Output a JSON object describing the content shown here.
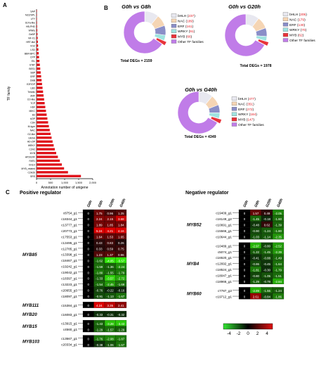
{
  "panels": {
    "a": "A",
    "b": "B",
    "c": "C"
  },
  "panelA": {
    "ylabel": "TF family",
    "xlabel": "Annotation number of unigene",
    "xticks": [
      "0",
      "500",
      "1,000",
      "1,500",
      "2,000"
    ],
    "categories": [
      "SAP",
      "NZZ/SPL",
      "LFY",
      "S1Fa-like",
      "HB-PHD",
      "Whirly",
      "GeBP",
      "NF-X1",
      "HRT-like",
      "VOZ",
      "LSD",
      "BBR-BPC",
      "CPP",
      "EIL",
      "STAT",
      "BES1",
      "SBP",
      "GRF",
      "DBB",
      "E2F/DP",
      "LBD",
      "Trihelix",
      "ARF",
      "CO-like",
      "TCP",
      "HSF",
      "MIKC",
      "B3",
      "bZIP",
      "C3H",
      "M-type",
      "NAC",
      "G2-like",
      "GRAS",
      "HD-ZIP",
      "WRKY",
      "C2H2",
      "MYB",
      "AP2/ERF",
      "FAR1",
      "bHLH",
      "MYB_related",
      "C2H2b",
      "SRS"
    ],
    "values": [
      6,
      10,
      14,
      18,
      22,
      28,
      34,
      40,
      48,
      56,
      66,
      78,
      90,
      104,
      118,
      132,
      148,
      164,
      180,
      196,
      214,
      232,
      250,
      270,
      290,
      312,
      336,
      360,
      386,
      412,
      440,
      470,
      502,
      536,
      572,
      610,
      650,
      700,
      760,
      830,
      900,
      980,
      1120,
      1580
    ],
    "xmax": 2000
  },
  "donuts": [
    {
      "title": "G0h vs G8h",
      "total": "Total DEGs = 2159",
      "segments": [
        {
          "name": "bHLH",
          "count": "237",
          "value": 237,
          "color": "#e8e8f0"
        },
        {
          "name": "NAC",
          "count": "189",
          "value": 189,
          "color": "#f5d5b4"
        },
        {
          "name": "ERF",
          "count": "161",
          "value": 161,
          "color": "#8a8ec8"
        },
        {
          "name": "WRKY",
          "count": "91",
          "value": 91,
          "color": "#9fe3e0"
        },
        {
          "name": "MYB",
          "count": "66",
          "value": 66,
          "color": "#e8333a"
        },
        {
          "name": "Other TF families",
          "count": "",
          "value": 1415,
          "color": "#c07ce8"
        }
      ]
    },
    {
      "title": "G0h vs G20h",
      "total": "Total DEGs = 1978",
      "segments": [
        {
          "name": "bHLH",
          "count": "205",
          "value": 205,
          "color": "#e8e8f0"
        },
        {
          "name": "NAC",
          "count": "179",
          "value": 179,
          "color": "#f5d5b4"
        },
        {
          "name": "ERF",
          "count": "130",
          "value": 130,
          "color": "#8a8ec8"
        },
        {
          "name": "WRKY",
          "count": "70",
          "value": 70,
          "color": "#9fe3e0"
        },
        {
          "name": "MYB",
          "count": "62",
          "value": 62,
          "color": "#e8333a"
        },
        {
          "name": "Other TF families",
          "count": "",
          "value": 1332,
          "color": "#c07ce8"
        }
      ]
    },
    {
      "title": "G0h vs G40h",
      "total": "Total DEGs = 4349",
      "segments": [
        {
          "name": "bHLH",
          "count": "477",
          "value": 477,
          "color": "#e8e8f0"
        },
        {
          "name": "NAC",
          "count": "351",
          "value": 351,
          "color": "#f5d5b4"
        },
        {
          "name": "ERF",
          "count": "272",
          "value": 272,
          "color": "#8a8ec8"
        },
        {
          "name": "WRKY",
          "count": "184",
          "value": 184,
          "color": "#9fe3e0"
        },
        {
          "name": "MYB",
          "count": "147",
          "value": 147,
          "color": "#e8333a"
        },
        {
          "name": "Other TF families",
          "count": "",
          "value": 2918,
          "color": "#c07ce8"
        }
      ]
    }
  ],
  "heatmap": {
    "positive_title": "Positive regulator",
    "negative_title": "Negative regulator",
    "columns": [
      "G0h",
      "G8h",
      "G20h",
      "G40h"
    ],
    "positive_groups": [
      {
        "label": "MYB85",
        "rows": [
          {
            "id": "c8754_g1",
            "v": [
              "0",
              "1.75",
              "0.96",
              "1.25"
            ]
          },
          {
            "id": "c18344_g1",
            "v": [
              "0",
              "2.24",
              "2.15",
              "3.68"
            ]
          },
          {
            "id": "c13777_g1",
            "v": [
              "0",
              "1.89",
              "1.85",
              "1.84"
            ]
          },
          {
            "id": "c20773_g1",
            "v": [
              "0",
              "5.24",
              "4.21",
              "4.16"
            ]
          },
          {
            "id": "c17553_g1",
            "v": [
              "0",
              "1.64",
              "1.53",
              "1.65"
            ]
          },
          {
            "id": "c13495_g1",
            "v": [
              "0",
              "0.43",
              "0.83",
              "0.26"
            ]
          },
          {
            "id": "c12785_g1",
            "v": [
              "0",
              "0.33",
              "0.59",
              "0.75"
            ]
          },
          {
            "id": "c13398_g1",
            "v": [
              "0",
              "1.23",
              "1.37",
              "0.96"
            ]
          },
          {
            "id": "c18467_g1",
            "v": [
              "0",
              "-1.62",
              "-4.05",
              "-5.57"
            ]
          },
          {
            "id": "c19242_g1",
            "v": [
              "0",
              "-1.59",
              "-1.36",
              "-2.24"
            ]
          },
          {
            "id": "c19042_g1",
            "v": [
              "0",
              "-1.80",
              "-1.55",
              "-1.79"
            ]
          },
          {
            "id": "c18397_g1",
            "v": [
              "0",
              "-1.33",
              "-3.57",
              "-2.72"
            ]
          },
          {
            "id": "c13223_g1",
            "v": [
              "0",
              "-1.54",
              "-2.45",
              "-1.69"
            ]
          },
          {
            "id": "c20655_g3",
            "v": [
              "0",
              "-0.76",
              "-0.22",
              "-0.16"
            ]
          },
          {
            "id": "c18097_g1",
            "v": [
              "0",
              "-0.91",
              "-1.13",
              "-1.67"
            ]
          }
        ]
      },
      {
        "label": "MYB111",
        "rows": [
          {
            "id": "c15384_g1",
            "v": [
              "0",
              "4.24",
              "3.35",
              "2.41"
            ]
          }
        ]
      },
      {
        "label": "MYB20",
        "rows": [
          {
            "id": "c16083_g1",
            "v": [
              "0",
              "-0.33",
              "-0.31",
              "-0.32"
            ]
          }
        ]
      },
      {
        "label": "MYB15",
        "rows": [
          {
            "id": "c13915_g1",
            "v": [
              "0",
              "-1.43",
              "-3.28",
              "-3.43"
            ]
          },
          {
            "id": "c4560_g1",
            "v": [
              "0",
              "-1.29",
              "-1.57",
              "-1.29"
            ]
          }
        ]
      },
      {
        "label": "MYB103",
        "rows": [
          {
            "id": "c13567_g1",
            "v": [
              "0",
              "-1.76",
              "-2.08",
              "-1.87"
            ]
          },
          {
            "id": "c20334_g1",
            "v": [
              "0",
              "-0.38",
              "-1.06",
              "-1.67"
            ]
          }
        ]
      }
    ],
    "negative_groups": [
      {
        "label": "MYB52",
        "rows": [
          {
            "id": "c19409_g1",
            "v": [
              "0",
              "1.57",
              "0.49",
              "-2.05"
            ]
          },
          {
            "id": "c16149_g2",
            "v": [
              "0",
              "-1.45",
              "-0.18",
              "-1.60"
            ]
          },
          {
            "id": "c10691_g1",
            "v": [
              "0",
              "-0.48",
              "0.62",
              "-1.39"
            ]
          },
          {
            "id": "c15566_g1",
            "v": [
              "0",
              "-0.90",
              "-1.24",
              "-1.80"
            ]
          },
          {
            "id": "c10644_g1",
            "v": [
              "0",
              "-1.03",
              "-1.14",
              "-2.35"
            ]
          }
        ]
      },
      {
        "label": "MYB4",
        "rows": [
          {
            "id": "c10489_g1",
            "v": [
              "0",
              "-2.97",
              "-0.80",
              "-2.52"
            ]
          },
          {
            "id": "c5074_g1",
            "v": [
              "0",
              "-1.22",
              "-1.45",
              "-2.39"
            ]
          },
          {
            "id": "c16520_g1",
            "v": [
              "0",
              "-0.41",
              "-0.88",
              "-1.49"
            ]
          },
          {
            "id": "c12692_g1",
            "v": [
              "0",
              "-0.86",
              "-0.45",
              "-1.64"
            ]
          },
          {
            "id": "c18524_g1",
            "v": [
              "0",
              "-1.81",
              "-0.30",
              "-1.79"
            ]
          },
          {
            "id": "c18047_g1",
            "v": [
              "0",
              "-0.80",
              "-1.05",
              "-1.51"
            ]
          },
          {
            "id": "c18966_g1",
            "v": [
              "0",
              "-1.29",
              "-0.79",
              "-2.84"
            ]
          }
        ]
      },
      {
        "label": "MYB60",
        "rows": [
          {
            "id": "c7787_g2",
            "v": [
              "0",
              "-2.89",
              "-1.55",
              "-1.24"
            ]
          },
          {
            "id": "c19712_g1",
            "v": [
              "0",
              "2.61",
              "-0.84",
              "-1.86"
            ]
          }
        ]
      }
    ],
    "legend_ticks": [
      "-4",
      "-2",
      "0",
      "2",
      "4"
    ]
  }
}
